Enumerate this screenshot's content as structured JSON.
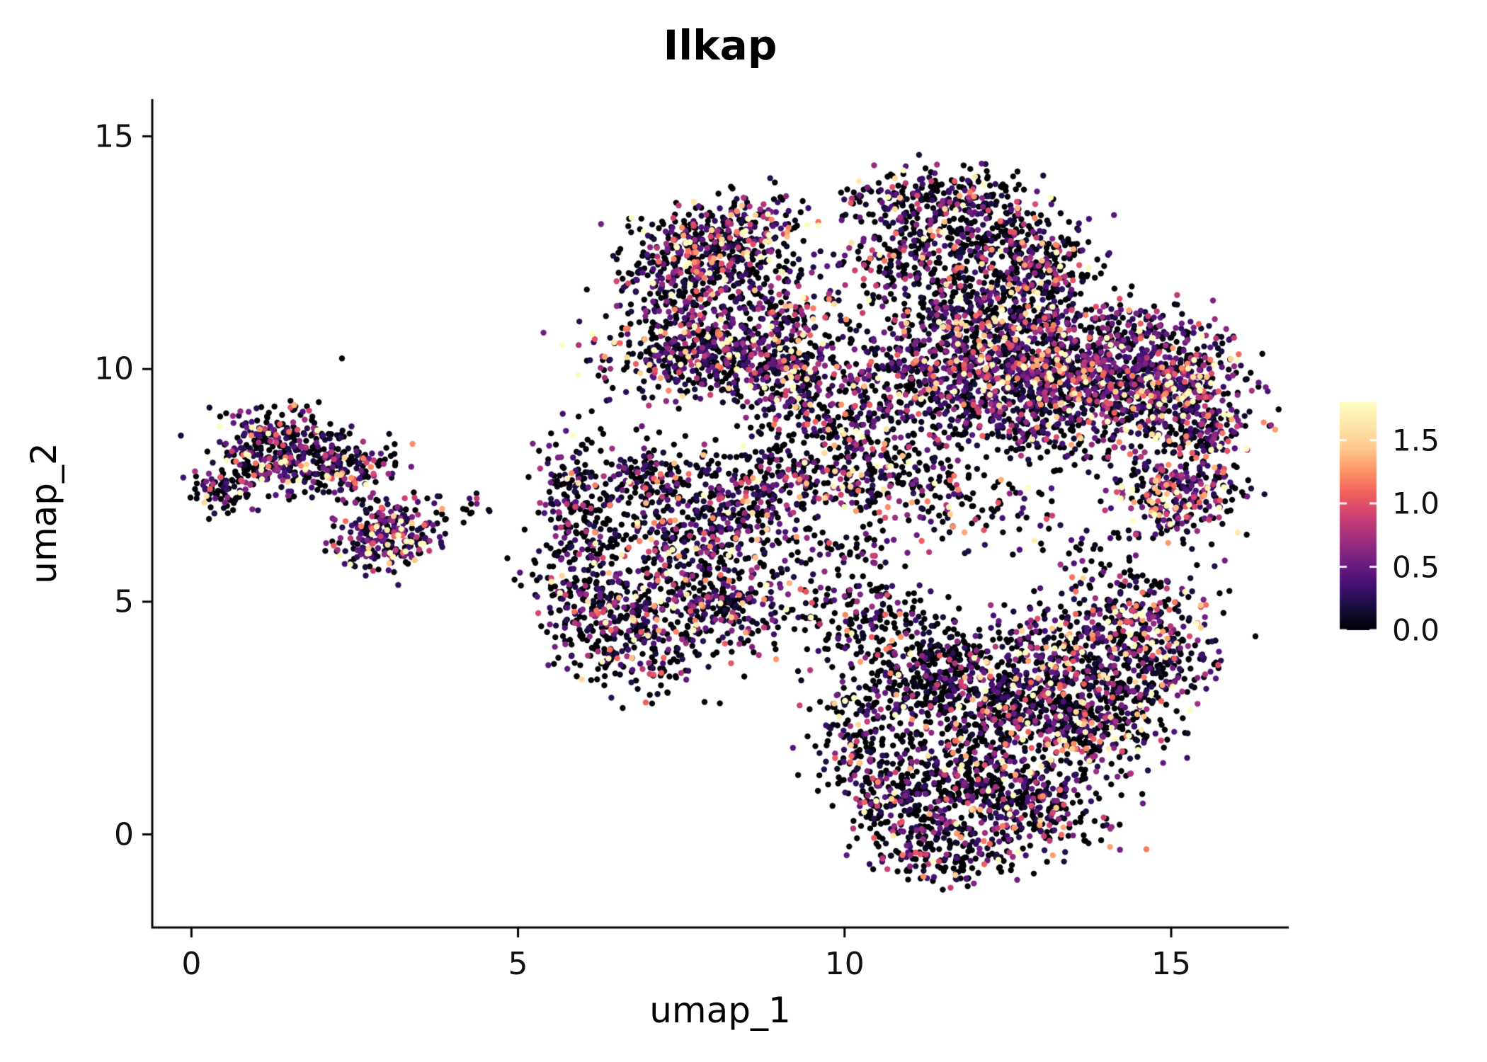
{
  "chart_data": {
    "type": "scatter",
    "title": "Ilkap",
    "xlabel": "umap_1",
    "ylabel": "umap_2",
    "xlim": [
      -0.6,
      16.8
    ],
    "ylim": [
      -2.0,
      15.8
    ],
    "x_ticks": {
      "values": [
        0,
        5,
        10,
        15
      ],
      "labels": [
        "0",
        "5",
        "10",
        "15"
      ]
    },
    "y_ticks": {
      "values": [
        0,
        5,
        10,
        15
      ],
      "labels": [
        "0",
        "5",
        "10",
        "15"
      ]
    },
    "grid": false,
    "legend_position": "right",
    "colorbar": {
      "vmin": 0.0,
      "vmax": 1.8,
      "ticks": [
        {
          "value": 0.0,
          "label": "0.0"
        },
        {
          "value": 0.5,
          "label": "0.5"
        },
        {
          "value": 1.0,
          "label": "1.0"
        },
        {
          "value": 1.5,
          "label": "1.5"
        }
      ],
      "colormap": "magma",
      "stops": [
        [
          0.0,
          "#000004"
        ],
        [
          0.1,
          "#180f3e"
        ],
        [
          0.2,
          "#451077"
        ],
        [
          0.3,
          "#721f81"
        ],
        [
          0.4,
          "#9f2f7f"
        ],
        [
          0.5,
          "#cd4071"
        ],
        [
          0.6,
          "#f1605d"
        ],
        [
          0.7,
          "#fd9567"
        ],
        [
          0.8,
          "#feca8d"
        ],
        [
          0.9,
          "#fde7a9"
        ],
        [
          1.0,
          "#fcfdbf"
        ]
      ]
    },
    "point_radius_px": 4.2,
    "seed": 42,
    "clusters": [
      {
        "x": 1.3,
        "y": 8.3,
        "sx": 0.55,
        "sy": 0.45,
        "n": 320,
        "p0": 0.4,
        "m": 0.55
      },
      {
        "x": 2.2,
        "y": 7.9,
        "sx": 0.55,
        "sy": 0.35,
        "n": 180,
        "p0": 0.4,
        "m": 0.55
      },
      {
        "x": 3.0,
        "y": 6.4,
        "sx": 0.4,
        "sy": 0.35,
        "n": 260,
        "p0": 0.25,
        "m": 0.7
      },
      {
        "x": 0.45,
        "y": 7.35,
        "sx": 0.22,
        "sy": 0.22,
        "n": 70,
        "p0": 0.4,
        "m": 0.5
      },
      {
        "x": 3.8,
        "y": 7.0,
        "sx": 0.45,
        "sy": 0.2,
        "n": 20,
        "p0": 0.6,
        "m": 0.4
      },
      {
        "x": 4.35,
        "y": 7.05,
        "sx": 0.2,
        "sy": 0.15,
        "n": 6,
        "p0": 0.6,
        "m": 0.3
      },
      {
        "x": 5.85,
        "y": 7.3,
        "sx": 0.3,
        "sy": 0.65,
        "n": 160,
        "p0": 0.45,
        "m": 0.5
      },
      {
        "x": 6.1,
        "y": 5.3,
        "sx": 0.45,
        "sy": 0.7,
        "n": 220,
        "p0": 0.45,
        "m": 0.5
      },
      {
        "x": 6.9,
        "y": 4.2,
        "sx": 0.55,
        "sy": 0.6,
        "n": 280,
        "p0": 0.45,
        "m": 0.55
      },
      {
        "x": 7.6,
        "y": 6.2,
        "sx": 0.75,
        "sy": 0.75,
        "n": 380,
        "p0": 0.45,
        "m": 0.5
      },
      {
        "x": 8.3,
        "y": 4.9,
        "sx": 0.5,
        "sy": 0.55,
        "n": 200,
        "p0": 0.45,
        "m": 0.5
      },
      {
        "x": 8.6,
        "y": 7.4,
        "sx": 0.7,
        "sy": 0.55,
        "n": 260,
        "p0": 0.45,
        "m": 0.5
      },
      {
        "x": 7.0,
        "y": 7.6,
        "sx": 0.4,
        "sy": 0.4,
        "n": 120,
        "p0": 0.45,
        "m": 0.5
      },
      {
        "x": 8.0,
        "y": 12.6,
        "sx": 0.6,
        "sy": 0.45,
        "n": 330,
        "p0": 0.35,
        "m": 0.6
      },
      {
        "x": 7.5,
        "y": 11.7,
        "sx": 0.5,
        "sy": 0.55,
        "n": 230,
        "p0": 0.4,
        "m": 0.55
      },
      {
        "x": 7.8,
        "y": 10.3,
        "sx": 0.85,
        "sy": 0.45,
        "n": 430,
        "p0": 0.4,
        "m": 0.55
      },
      {
        "x": 8.9,
        "y": 11.2,
        "sx": 0.55,
        "sy": 0.7,
        "n": 240,
        "p0": 0.4,
        "m": 0.55
      },
      {
        "x": 9.3,
        "y": 9.8,
        "sx": 0.55,
        "sy": 0.45,
        "n": 200,
        "p0": 0.4,
        "m": 0.5
      },
      {
        "x": 8.6,
        "y": 13.2,
        "sx": 0.4,
        "sy": 0.3,
        "n": 80,
        "p0": 0.35,
        "m": 0.6
      },
      {
        "x": 11.5,
        "y": 13.6,
        "sx": 0.75,
        "sy": 0.35,
        "n": 280,
        "p0": 0.45,
        "m": 0.5
      },
      {
        "x": 12.3,
        "y": 12.6,
        "sx": 0.65,
        "sy": 0.55,
        "n": 300,
        "p0": 0.4,
        "m": 0.5
      },
      {
        "x": 10.9,
        "y": 12.4,
        "sx": 0.45,
        "sy": 0.45,
        "n": 150,
        "p0": 0.45,
        "m": 0.5
      },
      {
        "x": 11.7,
        "y": 11.5,
        "sx": 0.8,
        "sy": 0.4,
        "n": 160,
        "p0": 0.45,
        "m": 0.5
      },
      {
        "x": 13.1,
        "y": 11.9,
        "sx": 0.5,
        "sy": 0.5,
        "n": 160,
        "p0": 0.4,
        "m": 0.5
      },
      {
        "x": 11.3,
        "y": 9.7,
        "sx": 0.75,
        "sy": 0.65,
        "n": 430,
        "p0": 0.35,
        "m": 0.5
      },
      {
        "x": 12.6,
        "y": 10.0,
        "sx": 0.75,
        "sy": 0.55,
        "n": 480,
        "p0": 0.3,
        "m": 0.55
      },
      {
        "x": 14.0,
        "y": 9.9,
        "sx": 0.85,
        "sy": 0.55,
        "n": 620,
        "p0": 0.22,
        "m": 0.6
      },
      {
        "x": 15.25,
        "y": 9.4,
        "sx": 0.5,
        "sy": 0.6,
        "n": 330,
        "p0": 0.25,
        "m": 0.6
      },
      {
        "x": 13.3,
        "y": 8.8,
        "sx": 0.85,
        "sy": 0.4,
        "n": 240,
        "p0": 0.35,
        "m": 0.5
      },
      {
        "x": 12.2,
        "y": 11.0,
        "sx": 0.6,
        "sy": 0.35,
        "n": 140,
        "p0": 0.4,
        "m": 0.5
      },
      {
        "x": 14.3,
        "y": 10.9,
        "sx": 0.7,
        "sy": 0.3,
        "n": 130,
        "p0": 0.35,
        "m": 0.5
      },
      {
        "x": 15.5,
        "y": 8.6,
        "sx": 0.35,
        "sy": 0.35,
        "n": 100,
        "p0": 0.3,
        "m": 0.55
      },
      {
        "x": 15.1,
        "y": 7.3,
        "sx": 0.5,
        "sy": 0.45,
        "n": 290,
        "p0": 0.25,
        "m": 0.65
      },
      {
        "x": 10.3,
        "y": 7.8,
        "sx": 0.75,
        "sy": 0.5,
        "n": 240,
        "p0": 0.45,
        "m": 0.5
      },
      {
        "x": 9.7,
        "y": 8.8,
        "sx": 0.5,
        "sy": 0.4,
        "n": 120,
        "p0": 0.45,
        "m": 0.5
      },
      {
        "x": 9.9,
        "y": 6.1,
        "sx": 0.7,
        "sy": 0.45,
        "n": 70,
        "p0": 0.55,
        "m": 0.45
      },
      {
        "x": 11.5,
        "y": 7.2,
        "sx": 0.5,
        "sy": 0.4,
        "n": 60,
        "p0": 0.5,
        "m": 0.5
      },
      {
        "x": 12.6,
        "y": 6.9,
        "sx": 0.5,
        "sy": 0.5,
        "n": 50,
        "p0": 0.5,
        "m": 0.5
      },
      {
        "x": 14.0,
        "y": 6.0,
        "sx": 0.5,
        "sy": 0.5,
        "n": 40,
        "p0": 0.5,
        "m": 0.5
      },
      {
        "x": 11.4,
        "y": 3.5,
        "sx": 0.65,
        "sy": 0.6,
        "n": 380,
        "p0": 0.55,
        "m": 0.45
      },
      {
        "x": 12.5,
        "y": 2.7,
        "sx": 0.75,
        "sy": 0.75,
        "n": 450,
        "p0": 0.45,
        "m": 0.55
      },
      {
        "x": 13.6,
        "y": 3.9,
        "sx": 0.75,
        "sy": 0.6,
        "n": 400,
        "p0": 0.4,
        "m": 0.55
      },
      {
        "x": 13.9,
        "y": 2.3,
        "sx": 0.55,
        "sy": 0.55,
        "n": 300,
        "p0": 0.45,
        "m": 0.5
      },
      {
        "x": 12.0,
        "y": 1.2,
        "sx": 0.6,
        "sy": 0.6,
        "n": 300,
        "p0": 0.45,
        "m": 0.5
      },
      {
        "x": 12.9,
        "y": 0.5,
        "sx": 0.55,
        "sy": 0.45,
        "n": 240,
        "p0": 0.45,
        "m": 0.5
      },
      {
        "x": 11.1,
        "y": 0.3,
        "sx": 0.45,
        "sy": 0.55,
        "n": 190,
        "p0": 0.5,
        "m": 0.45
      },
      {
        "x": 11.7,
        "y": -0.5,
        "sx": 0.5,
        "sy": 0.3,
        "n": 110,
        "p0": 0.5,
        "m": 0.45
      },
      {
        "x": 10.3,
        "y": 2.3,
        "sx": 0.45,
        "sy": 0.7,
        "n": 170,
        "p0": 0.5,
        "m": 0.5
      },
      {
        "x": 10.2,
        "y": 4.7,
        "sx": 0.55,
        "sy": 0.45,
        "n": 150,
        "p0": 0.45,
        "m": 0.5
      },
      {
        "x": 14.6,
        "y": 4.8,
        "sx": 0.5,
        "sy": 0.45,
        "n": 160,
        "p0": 0.4,
        "m": 0.55
      },
      {
        "x": 14.9,
        "y": 3.6,
        "sx": 0.4,
        "sy": 0.5,
        "n": 140,
        "p0": 0.4,
        "m": 0.5
      },
      {
        "x": 10.6,
        "y": 1.0,
        "sx": 0.35,
        "sy": 0.4,
        "n": 80,
        "p0": 0.5,
        "m": 0.45
      }
    ]
  }
}
